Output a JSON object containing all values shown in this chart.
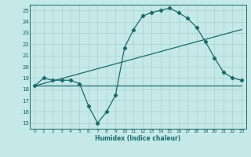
{
  "xlabel": "Humidex (Indice chaleur)",
  "bg_color": "#c5e8e8",
  "grid_color": "#afd4d4",
  "line_color": "#1a6b6b",
  "xlim": [
    -0.5,
    23.5
  ],
  "ylim": [
    14.5,
    25.5
  ],
  "xticks": [
    0,
    1,
    2,
    3,
    4,
    5,
    6,
    7,
    8,
    9,
    10,
    11,
    12,
    13,
    14,
    15,
    16,
    17,
    18,
    19,
    20,
    21,
    22,
    23
  ],
  "yticks": [
    15,
    16,
    17,
    18,
    19,
    20,
    21,
    22,
    23,
    24,
    25
  ],
  "line1_x": [
    0,
    1,
    2,
    3,
    4,
    5,
    6,
    7,
    8,
    9,
    10,
    11,
    12,
    13,
    14,
    15,
    16,
    17,
    18,
    19,
    20,
    21,
    22,
    23
  ],
  "line1_y": [
    18.3,
    19.0,
    18.8,
    18.8,
    18.8,
    18.5,
    16.5,
    15.0,
    16.0,
    17.5,
    21.7,
    23.3,
    24.5,
    24.8,
    25.0,
    25.2,
    24.8,
    24.3,
    23.5,
    22.2,
    20.8,
    19.5,
    19.0,
    18.8
  ],
  "line2_x": [
    0,
    23
  ],
  "line2_y": [
    18.3,
    18.3
  ],
  "line3_x": [
    0,
    23
  ],
  "line3_y": [
    18.3,
    23.3
  ]
}
